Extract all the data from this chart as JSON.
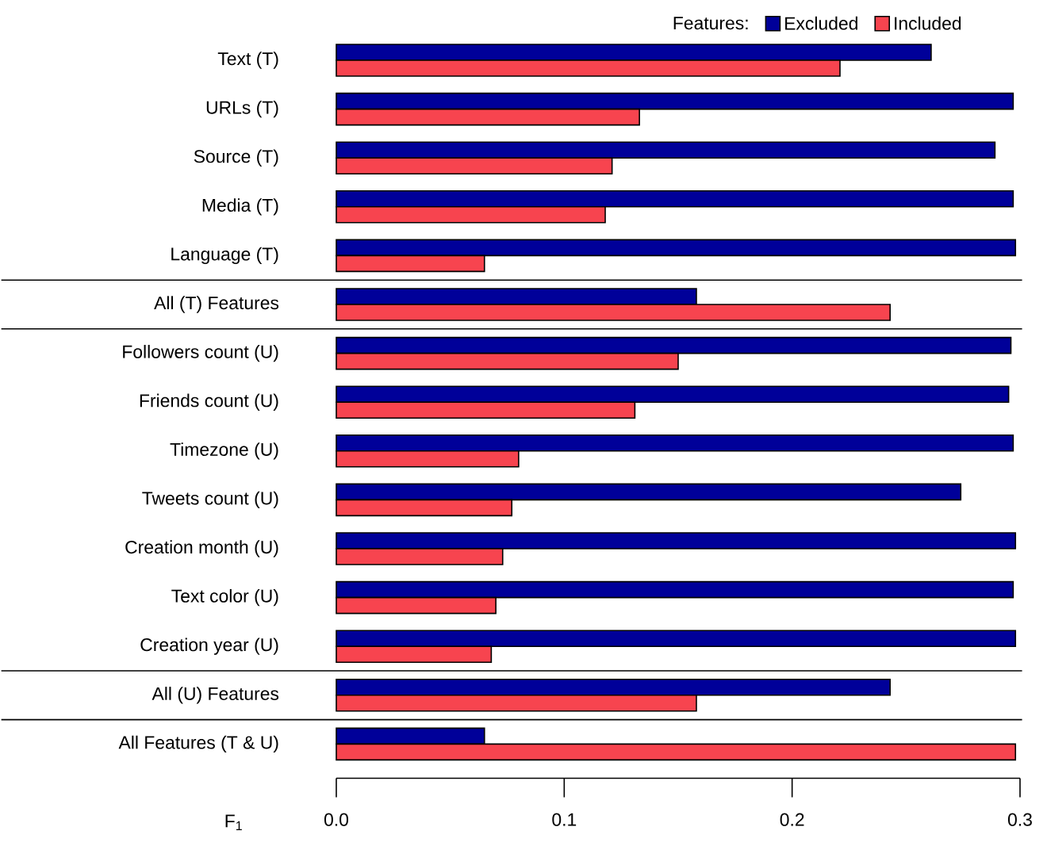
{
  "chart_data": {
    "type": "bar",
    "orientation": "horizontal",
    "xlabel": "F$_{1}$",
    "legend_title": "Features:",
    "legend": "top right",
    "categories": [
      "Text (T)",
      "URLs (T)",
      "Source (T)",
      "Media (T)",
      "Language (T)",
      "All (T) Features",
      "Followers count (U)",
      "Friends count (U)",
      "Timezone (U)",
      "Tweets count (U)",
      "Creation month (U)",
      "Text color (U)",
      "Creation year (U)",
      "All (U) Features",
      "All Features (T & U)"
    ],
    "series": [
      {
        "name": "Excluded",
        "color": "#000099",
        "values": [
          0.261,
          0.297,
          0.289,
          0.297,
          0.298,
          0.158,
          0.296,
          0.295,
          0.297,
          0.274,
          0.298,
          0.297,
          0.298,
          0.243,
          0.065
        ]
      },
      {
        "name": "Included",
        "color": "#f7444f",
        "values": [
          0.221,
          0.133,
          0.121,
          0.118,
          0.065,
          0.243,
          0.15,
          0.131,
          0.08,
          0.077,
          0.073,
          0.07,
          0.068,
          0.158,
          0.298
        ]
      }
    ],
    "xlim": [
      0,
      0.3
    ],
    "xticks": [
      {
        "value": 0,
        "label": "0.0"
      },
      0.1,
      0.2,
      0.3
    ]
  }
}
